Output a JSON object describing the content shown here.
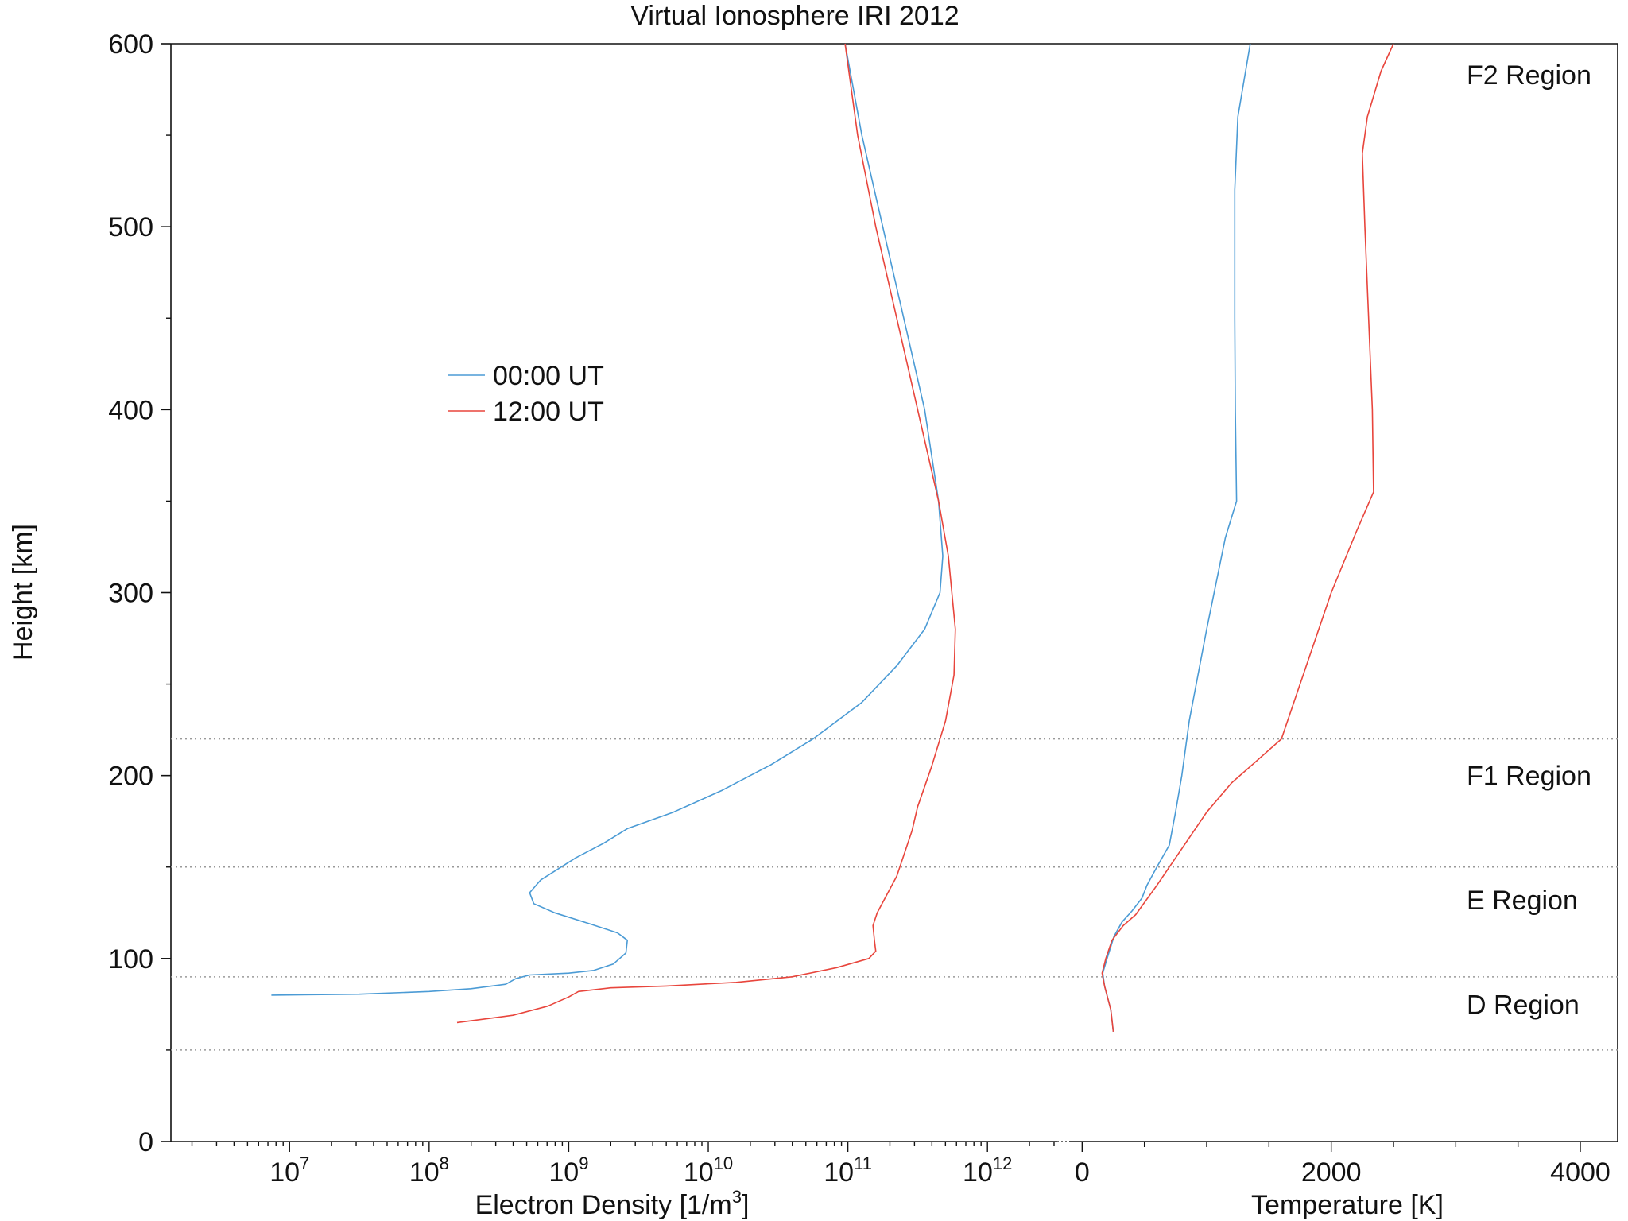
{
  "chart_data": {
    "type": "line",
    "title": "Virtual Ionosphere IRI 2012",
    "ylabel": "Height [km]",
    "ylim": [
      0,
      600
    ],
    "y_ticks": [
      0,
      100,
      200,
      300,
      400,
      500,
      600
    ],
    "grid": "off",
    "legend": {
      "placement": "upper-left-center",
      "entries": [
        {
          "name": "00:00 UT",
          "color": "#4b9bd5"
        },
        {
          "name": "12:00 UT",
          "color": "#e8453c"
        }
      ]
    },
    "region_boundaries_km": [
      50,
      90,
      150,
      220
    ],
    "region_labels": [
      {
        "text": "F2 Region",
        "height_km": 583
      },
      {
        "text": "F1 Region",
        "height_km": 200
      },
      {
        "text": "E Region",
        "height_km": 132
      },
      {
        "text": "D Region",
        "height_km": 75
      }
    ],
    "density_panel": {
      "xlabel_prefix": "Electron Density [1/m",
      "xlabel_sup": "3",
      "xlabel_suffix": "]",
      "xscale": "log",
      "xlim_log10": [
        6.15,
        12.5
      ],
      "tick_base": "10",
      "tick_exponents": [
        "7",
        "8",
        "9",
        "10",
        "11",
        "12"
      ],
      "series": [
        {
          "name": "00:00 UT",
          "color": "#4b9bd5",
          "points": [
            [
              6.87,
              80
            ],
            [
              7.5,
              80.5
            ],
            [
              8.0,
              82
            ],
            [
              8.3,
              83.5
            ],
            [
              8.55,
              86
            ],
            [
              8.62,
              89
            ],
            [
              8.72,
              91
            ],
            [
              9.0,
              92
            ],
            [
              9.18,
              93.5
            ],
            [
              9.32,
              97
            ],
            [
              9.41,
              103
            ],
            [
              9.42,
              110
            ],
            [
              9.35,
              114
            ],
            [
              9.15,
              119
            ],
            [
              8.9,
              125
            ],
            [
              8.75,
              130
            ],
            [
              8.72,
              136
            ],
            [
              8.8,
              143
            ],
            [
              9.05,
              155
            ],
            [
              9.25,
              163
            ],
            [
              9.42,
              171
            ],
            [
              9.75,
              180
            ],
            [
              10.1,
              192
            ],
            [
              10.45,
              206
            ],
            [
              10.75,
              220
            ],
            [
              11.1,
              240
            ],
            [
              11.35,
              260
            ],
            [
              11.55,
              280
            ],
            [
              11.66,
              300
            ],
            [
              11.68,
              320
            ],
            [
              11.65,
              350
            ],
            [
              11.55,
              400
            ],
            [
              11.4,
              450
            ],
            [
              11.25,
              500
            ],
            [
              11.1,
              550
            ],
            [
              10.98,
              600
            ]
          ]
        },
        {
          "name": "12:00 UT",
          "color": "#e8453c",
          "points": [
            [
              8.2,
              65
            ],
            [
              8.6,
              69
            ],
            [
              8.85,
              74
            ],
            [
              9.0,
              79
            ],
            [
              9.07,
              82
            ],
            [
              9.3,
              84
            ],
            [
              9.7,
              85
            ],
            [
              10.2,
              87
            ],
            [
              10.6,
              90
            ],
            [
              10.92,
              95
            ],
            [
              11.15,
              100
            ],
            [
              11.2,
              104
            ],
            [
              11.19,
              110
            ],
            [
              11.18,
              118
            ],
            [
              11.21,
              125
            ],
            [
              11.35,
              145
            ],
            [
              11.46,
              170
            ],
            [
              11.5,
              183
            ],
            [
              11.6,
              205
            ],
            [
              11.7,
              230
            ],
            [
              11.76,
              255
            ],
            [
              11.77,
              280
            ],
            [
              11.72,
              320
            ],
            [
              11.65,
              350
            ],
            [
              11.5,
              400
            ],
            [
              11.35,
              450
            ],
            [
              11.2,
              500
            ],
            [
              11.07,
              550
            ],
            [
              10.98,
              600
            ]
          ]
        }
      ]
    },
    "temperature_panel": {
      "xlabel": "Temperature [K]",
      "xlim": [
        -200,
        4300
      ],
      "xticks": [
        0,
        2000,
        4000
      ],
      "series": [
        {
          "name": "00:00 UT",
          "color": "#4b9bd5",
          "points": [
            [
              250,
              60
            ],
            [
              230,
              72
            ],
            [
              180,
              85
            ],
            [
              165,
              92
            ],
            [
              200,
              100
            ],
            [
              255,
              112
            ],
            [
              320,
              120
            ],
            [
              400,
              126
            ],
            [
              480,
              133
            ],
            [
              520,
              140
            ],
            [
              600,
              150
            ],
            [
              700,
              162
            ],
            [
              750,
              180
            ],
            [
              800,
              200
            ],
            [
              860,
              230
            ],
            [
              1000,
              280
            ],
            [
              1150,
              330
            ],
            [
              1240,
              350
            ],
            [
              1230,
              400
            ],
            [
              1225,
              450
            ],
            [
              1225,
              520
            ],
            [
              1250,
              560
            ],
            [
              1300,
              580
            ],
            [
              1350,
              600
            ]
          ]
        },
        {
          "name": "12:00 UT",
          "color": "#e8453c",
          "points": [
            [
              250,
              60
            ],
            [
              230,
              72
            ],
            [
              180,
              85
            ],
            [
              160,
              92
            ],
            [
              190,
              100
            ],
            [
              240,
              110
            ],
            [
              330,
              118
            ],
            [
              430,
              124
            ],
            [
              600,
              140
            ],
            [
              800,
              160
            ],
            [
              1000,
              180
            ],
            [
              1200,
              196
            ],
            [
              1400,
              208
            ],
            [
              1600,
              220
            ],
            [
              1800,
              260
            ],
            [
              2000,
              300
            ],
            [
              2200,
              333
            ],
            [
              2340,
              355
            ],
            [
              2330,
              400
            ],
            [
              2300,
              450
            ],
            [
              2270,
              500
            ],
            [
              2250,
              540
            ],
            [
              2290,
              560
            ],
            [
              2400,
              585
            ],
            [
              2500,
              600
            ]
          ]
        }
      ]
    }
  }
}
